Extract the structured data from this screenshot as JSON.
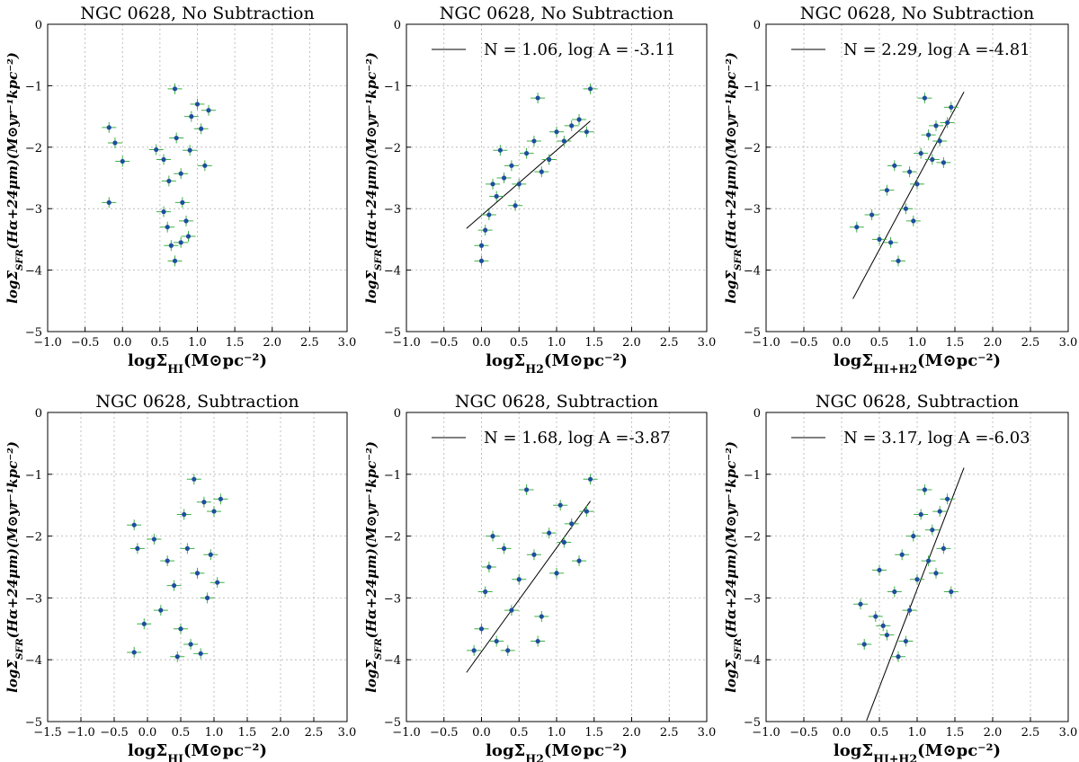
{
  "colors": {
    "marker": "#1f4e9e",
    "errorbar": "#3cb043",
    "fitline": "#000000",
    "grid": "#b0b0b0"
  },
  "chart_data": [
    {
      "type": "scatter",
      "title": "NGC 0628, No Subtraction",
      "xlabel": "logΣ_HI(M⊙pc⁻²)",
      "ylabel": "logΣ_SFR(Hα+24μm)(M⊙yr⁻¹kpc⁻²)",
      "xlim": [
        -1.0,
        3.0
      ],
      "ylim": [
        -5,
        0
      ],
      "xticks": [
        "−1.0",
        "−0.5",
        "0.0",
        "0.5",
        "1.0",
        "1.5",
        "2.0",
        "2.5",
        "3.0"
      ],
      "yticks": [
        "−5",
        "−4",
        "−3",
        "−2",
        "−1",
        "0"
      ],
      "grid": true,
      "fit": null,
      "legend": "",
      "points": [
        [
          -0.18,
          -1.68
        ],
        [
          -0.1,
          -1.93
        ],
        [
          0.0,
          -2.23
        ],
        [
          -0.18,
          -2.9
        ],
        [
          0.45,
          -2.04
        ],
        [
          0.55,
          -2.2
        ],
        [
          0.62,
          -2.55
        ],
        [
          0.7,
          -1.05
        ],
        [
          0.72,
          -1.85
        ],
        [
          0.78,
          -2.43
        ],
        [
          0.8,
          -2.9
        ],
        [
          0.85,
          -3.2
        ],
        [
          0.9,
          -2.05
        ],
        [
          0.92,
          -1.5
        ],
        [
          1.0,
          -1.3
        ],
        [
          1.05,
          -1.7
        ],
        [
          1.1,
          -2.3
        ],
        [
          1.15,
          -1.4
        ],
        [
          0.65,
          -3.6
        ],
        [
          0.7,
          -3.85
        ],
        [
          0.78,
          -3.55
        ],
        [
          0.6,
          -3.3
        ],
        [
          0.88,
          -3.45
        ],
        [
          0.55,
          -3.05
        ]
      ]
    },
    {
      "type": "scatter",
      "title": "NGC 0628, No Subtraction",
      "xlabel": "logΣ_H2(M⊙pc⁻²)",
      "ylabel": "logΣ_SFR(Hα+24μm)(M⊙yr⁻¹kpc⁻²)",
      "xlim": [
        -1.0,
        3.0
      ],
      "ylim": [
        -5,
        0
      ],
      "xticks": [
        "−1.0",
        "−0.5",
        "0.0",
        "0.5",
        "1.0",
        "1.5",
        "2.0",
        "2.5",
        "3.0"
      ],
      "yticks": [
        "−5",
        "−4",
        "−3",
        "−2",
        "−1",
        "0"
      ],
      "grid": true,
      "fit": {
        "N": 1.06,
        "logA": -3.11,
        "x_range": [
          -0.2,
          1.45
        ]
      },
      "legend": "N = 1.06, log A = -3.11",
      "points": [
        [
          0.0,
          -3.85
        ],
        [
          0.0,
          -3.6
        ],
        [
          0.05,
          -3.35
        ],
        [
          0.1,
          -3.1
        ],
        [
          0.2,
          -2.8
        ],
        [
          0.3,
          -2.5
        ],
        [
          0.4,
          -2.3
        ],
        [
          0.5,
          -2.6
        ],
        [
          0.6,
          -2.1
        ],
        [
          0.7,
          -1.9
        ],
        [
          0.75,
          -1.2
        ],
        [
          0.8,
          -2.4
        ],
        [
          0.9,
          -2.2
        ],
        [
          1.0,
          -1.75
        ],
        [
          1.1,
          -1.9
        ],
        [
          1.2,
          -1.65
        ],
        [
          1.3,
          -1.55
        ],
        [
          1.4,
          -1.75
        ],
        [
          1.45,
          -1.05
        ],
        [
          0.45,
          -2.95
        ],
        [
          0.25,
          -2.05
        ],
        [
          0.15,
          -2.6
        ]
      ]
    },
    {
      "type": "scatter",
      "title": "NGC 0628, No Subtraction",
      "xlabel": "logΣ_HI+H2(M⊙pc⁻²)",
      "ylabel": "logΣ_SFR(Hα+24μm)(M⊙yr⁻¹kpc⁻²)",
      "xlim": [
        -1.0,
        3.0
      ],
      "ylim": [
        -5,
        0
      ],
      "xticks": [
        "−1.0",
        "−0.5",
        "0.0",
        "0.5",
        "1.0",
        "1.5",
        "2.0",
        "2.5",
        "3.0"
      ],
      "yticks": [
        "−5",
        "−4",
        "−3",
        "−2",
        "−1",
        "0"
      ],
      "grid": true,
      "fit": {
        "N": 2.29,
        "logA": -4.81,
        "x_range": [
          0.15,
          1.62
        ]
      },
      "legend": "N = 2.29, log A =-4.81",
      "points": [
        [
          0.2,
          -3.3
        ],
        [
          0.4,
          -3.1
        ],
        [
          0.5,
          -3.5
        ],
        [
          0.6,
          -2.7
        ],
        [
          0.7,
          -2.3
        ],
        [
          0.75,
          -3.85
        ],
        [
          0.85,
          -3.0
        ],
        [
          0.9,
          -2.4
        ],
        [
          1.0,
          -2.6
        ],
        [
          1.05,
          -2.1
        ],
        [
          1.1,
          -1.2
        ],
        [
          1.15,
          -1.8
        ],
        [
          1.2,
          -2.2
        ],
        [
          1.25,
          -1.65
        ],
        [
          1.3,
          -1.9
        ],
        [
          1.4,
          -1.6
        ],
        [
          1.45,
          -1.35
        ],
        [
          1.35,
          -2.25
        ],
        [
          0.95,
          -3.2
        ],
        [
          0.65,
          -3.55
        ]
      ]
    },
    {
      "type": "scatter",
      "title": "NGC 0628, Subtraction",
      "xlabel": "logΣ_HI(M⊙pc⁻²)",
      "ylabel": "logΣ_SFR(Hα+24μm)(M⊙yr⁻¹kpc⁻²)",
      "xlim": [
        -1.5,
        3.0
      ],
      "ylim": [
        -5,
        0
      ],
      "xticks": [
        "−1.5",
        "−1.0",
        "−0.5",
        "0.0",
        "0.5",
        "1.0",
        "1.5",
        "2.0",
        "2.5",
        "3.0"
      ],
      "yticks": [
        "−5",
        "−4",
        "−3",
        "−2",
        "−1",
        "0"
      ],
      "grid": true,
      "fit": null,
      "legend": "",
      "points": [
        [
          -0.2,
          -1.82
        ],
        [
          -0.15,
          -2.2
        ],
        [
          -0.2,
          -3.88
        ],
        [
          -0.05,
          -3.42
        ],
        [
          0.1,
          -2.05
        ],
        [
          0.2,
          -3.2
        ],
        [
          0.3,
          -2.4
        ],
        [
          0.4,
          -2.8
        ],
        [
          0.5,
          -3.5
        ],
        [
          0.6,
          -2.2
        ],
        [
          0.7,
          -1.08
        ],
        [
          0.75,
          -2.6
        ],
        [
          0.8,
          -3.9
        ],
        [
          0.85,
          -1.45
        ],
        [
          0.9,
          -3.0
        ],
        [
          0.95,
          -2.3
        ],
        [
          1.0,
          -1.6
        ],
        [
          1.05,
          -2.75
        ],
        [
          1.1,
          -1.4
        ],
        [
          0.65,
          -3.75
        ],
        [
          0.55,
          -1.65
        ],
        [
          0.45,
          -3.95
        ]
      ]
    },
    {
      "type": "scatter",
      "title": "NGC 0628, Subtraction",
      "xlabel": "logΣ_H2(M⊙pc⁻²)",
      "ylabel": "logΣ_SFR(Hα+24μm)(M⊙yr⁻¹kpc⁻²)",
      "xlim": [
        -1.0,
        3.0
      ],
      "ylim": [
        -5,
        0
      ],
      "xticks": [
        "−1.0",
        "−0.5",
        "0.0",
        "0.5",
        "1.0",
        "1.5",
        "2.0",
        "2.5",
        "3.0"
      ],
      "yticks": [
        "−5",
        "−4",
        "−3",
        "−2",
        "−1",
        "0"
      ],
      "grid": true,
      "fit": {
        "N": 1.68,
        "logA": -3.87,
        "x_range": [
          -0.2,
          1.45
        ]
      },
      "legend": "N = 1.68, log A =-3.87",
      "points": [
        [
          -0.1,
          -3.85
        ],
        [
          0.0,
          -3.5
        ],
        [
          0.05,
          -2.9
        ],
        [
          0.1,
          -2.5
        ],
        [
          0.2,
          -3.7
        ],
        [
          0.3,
          -2.2
        ],
        [
          0.4,
          -3.2
        ],
        [
          0.5,
          -2.7
        ],
        [
          0.6,
          -1.25
        ],
        [
          0.7,
          -2.3
        ],
        [
          0.8,
          -3.3
        ],
        [
          0.9,
          -1.95
        ],
        [
          1.0,
          -2.6
        ],
        [
          1.05,
          -1.5
        ],
        [
          1.1,
          -2.1
        ],
        [
          1.2,
          -1.8
        ],
        [
          1.3,
          -2.4
        ],
        [
          1.4,
          -1.6
        ],
        [
          1.45,
          -1.08
        ],
        [
          0.75,
          -3.7
        ],
        [
          0.35,
          -3.85
        ],
        [
          0.15,
          -2.0
        ]
      ]
    },
    {
      "type": "scatter",
      "title": "NGC 0628, Subtraction",
      "xlabel": "logΣ_HI+H2(M⊙pc⁻²)",
      "ylabel": "logΣ_SFR(Hα+24μm)(M⊙yr⁻¹kpc⁻²)",
      "xlim": [
        -1.0,
        3.0
      ],
      "ylim": [
        -5,
        0
      ],
      "xticks": [
        "−1.0",
        "−0.5",
        "0.0",
        "0.5",
        "1.0",
        "1.5",
        "2.0",
        "2.5",
        "3.0"
      ],
      "yticks": [
        "−5",
        "−4",
        "−3",
        "−2",
        "−1",
        "0"
      ],
      "grid": true,
      "fit": {
        "N": 3.17,
        "logA": -6.03,
        "x_range": [
          0.33,
          1.62
        ]
      },
      "legend": "N = 3.17, log A =-6.03",
      "points": [
        [
          0.25,
          -3.1
        ],
        [
          0.3,
          -3.75
        ],
        [
          0.45,
          -3.3
        ],
        [
          0.5,
          -2.55
        ],
        [
          0.6,
          -3.6
        ],
        [
          0.7,
          -2.9
        ],
        [
          0.75,
          -3.95
        ],
        [
          0.8,
          -2.3
        ],
        [
          0.9,
          -3.2
        ],
        [
          0.95,
          -2.0
        ],
        [
          1.0,
          -2.7
        ],
        [
          1.05,
          -1.65
        ],
        [
          1.1,
          -1.25
        ],
        [
          1.15,
          -2.4
        ],
        [
          1.2,
          -1.9
        ],
        [
          1.25,
          -2.6
        ],
        [
          1.3,
          -1.6
        ],
        [
          1.35,
          -2.2
        ],
        [
          1.4,
          -1.4
        ],
        [
          1.45,
          -2.9
        ],
        [
          0.85,
          -3.7
        ],
        [
          0.55,
          -3.45
        ]
      ]
    }
  ]
}
